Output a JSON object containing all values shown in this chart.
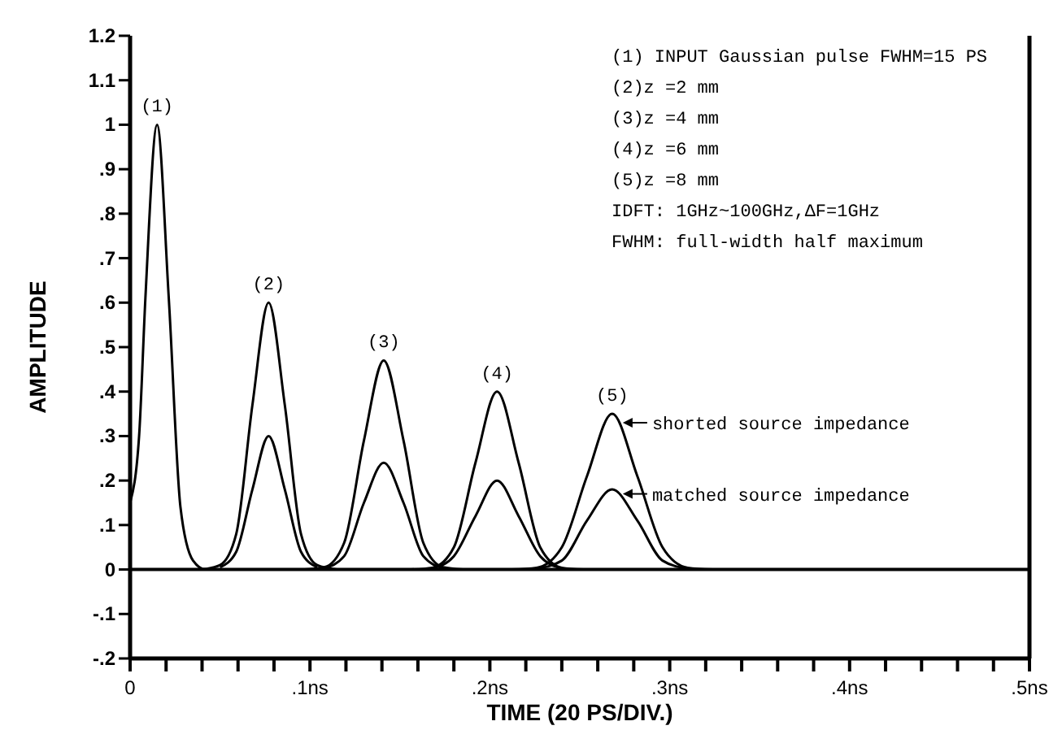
{
  "chart_data": {
    "type": "line",
    "xlabel": "TIME (20 PS/DIV.)",
    "ylabel": "AMPLITUDE",
    "xlim": [
      0,
      0.5
    ],
    "ylim": [
      -0.2,
      1.2
    ],
    "xticks": [
      0,
      {
        "value": 0.02,
        "label": null
      },
      {
        "value": 0.04,
        "label": null
      },
      {
        "value": 0.06,
        "label": null
      },
      {
        "value": 0.08,
        "label": null
      },
      {
        "value": 0.1,
        "label": ".1ns"
      },
      {
        "value": 0.12,
        "label": null
      },
      {
        "value": 0.14,
        "label": null
      },
      {
        "value": 0.16,
        "label": null
      },
      {
        "value": 0.18,
        "label": null
      },
      {
        "value": 0.2,
        "label": ".2ns"
      },
      {
        "value": 0.22,
        "label": null
      },
      {
        "value": 0.24,
        "label": null
      },
      {
        "value": 0.26,
        "label": null
      },
      {
        "value": 0.28,
        "label": null
      },
      {
        "value": 0.3,
        "label": ".3ns"
      },
      {
        "value": 0.32,
        "label": null
      },
      {
        "value": 0.34,
        "label": null
      },
      {
        "value": 0.36,
        "label": null
      },
      {
        "value": 0.38,
        "label": null
      },
      {
        "value": 0.4,
        "label": ".4ns"
      },
      {
        "value": 0.42,
        "label": null
      },
      {
        "value": 0.44,
        "label": null
      },
      {
        "value": 0.46,
        "label": null
      },
      {
        "value": 0.48,
        "label": null
      },
      {
        "value": 0.5,
        "label": ".5ns"
      }
    ],
    "yticks": [
      {
        "value": -0.2,
        "label": "-.2"
      },
      {
        "value": -0.1,
        "label": "-.1"
      },
      0,
      {
        "value": 0.1,
        "label": ".1"
      },
      {
        "value": 0.2,
        "label": ".2"
      },
      {
        "value": 0.3,
        "label": ".3"
      },
      {
        "value": 0.4,
        "label": ".4"
      },
      {
        "value": 0.5,
        "label": ".5"
      },
      {
        "value": 0.6,
        "label": ".6"
      },
      {
        "value": 0.7,
        "label": ".7"
      },
      {
        "value": 0.8,
        "label": ".8"
      },
      {
        "value": 0.9,
        "label": ".9"
      },
      1,
      {
        "value": 1.1,
        "label": "1.1"
      },
      {
        "value": 1.2,
        "label": "1.2"
      }
    ],
    "grid": false,
    "marker": "none",
    "line_style": "solid",
    "ref_lines": [
      {
        "axis": "y",
        "value": 0,
        "color": "#000000"
      }
    ],
    "series": [
      {
        "color": "#000000",
        "x": [
          0,
          0.005,
          0.0085,
          0.015,
          0.0215,
          0.028,
          0.035,
          0.042,
          0.05
        ],
        "values": [
          0.15,
          0.3,
          0.61,
          1,
          0.61,
          0.14,
          0.02,
          0,
          0
        ]
      },
      {
        "color": "#000000",
        "x": [
          0.04,
          0.05,
          0.059,
          0.068,
          0.077,
          0.086,
          0.095,
          0.104,
          0.115
        ],
        "values": [
          0,
          0.01,
          0.08,
          0.37,
          0.6,
          0.37,
          0.08,
          0.01,
          0
        ]
      },
      {
        "color": "#000000",
        "x": [
          0.05,
          0.059,
          0.068,
          0.077,
          0.086,
          0.095,
          0.104
        ],
        "values": [
          0.005,
          0.04,
          0.18,
          0.3,
          0.18,
          0.04,
          0.005
        ]
      },
      {
        "color": "#000000",
        "x": [
          0.097,
          0.108,
          0.119,
          0.13,
          0.141,
          0.152,
          0.163,
          0.174,
          0.185
        ],
        "values": [
          0,
          0.005,
          0.06,
          0.29,
          0.47,
          0.29,
          0.06,
          0.005,
          0
        ]
      },
      {
        "color": "#000000",
        "x": [
          0.108,
          0.119,
          0.13,
          0.141,
          0.152,
          0.163,
          0.174
        ],
        "values": [
          0.003,
          0.03,
          0.15,
          0.24,
          0.15,
          0.03,
          0.003
        ]
      },
      {
        "color": "#000000",
        "x": [
          0.156,
          0.168,
          0.18,
          0.192,
          0.204,
          0.216,
          0.228,
          0.24,
          0.252
        ],
        "values": [
          0,
          0.004,
          0.05,
          0.24,
          0.4,
          0.24,
          0.05,
          0.004,
          0
        ]
      },
      {
        "color": "#000000",
        "x": [
          0.168,
          0.18,
          0.192,
          0.204,
          0.216,
          0.228,
          0.24
        ],
        "values": [
          0.002,
          0.03,
          0.12,
          0.2,
          0.12,
          0.03,
          0.002
        ]
      },
      {
        "color": "#000000",
        "x": [
          0.212,
          0.226,
          0.24,
          0.254,
          0.268,
          0.282,
          0.296,
          0.31,
          0.324
        ],
        "values": [
          0,
          0.004,
          0.05,
          0.21,
          0.35,
          0.21,
          0.05,
          0.004,
          0
        ]
      },
      {
        "color": "#000000",
        "x": [
          0.226,
          0.24,
          0.254,
          0.268,
          0.282,
          0.296,
          0.31
        ],
        "values": [
          0.002,
          0.02,
          0.11,
          0.18,
          0.11,
          0.02,
          0.002
        ]
      }
    ],
    "annotations": [
      {
        "text": "(1)",
        "x": 0.015,
        "y": 1
      },
      {
        "text": "(2)",
        "x": 0.077,
        "y": 0.6
      },
      {
        "text": "(3)",
        "x": 0.141,
        "y": 0.47
      },
      {
        "text": "(4)",
        "x": 0.204,
        "y": 0.4
      },
      {
        "text": "(5)",
        "x": 0.268,
        "y": 0.35
      },
      {
        "text": "shorted source impedance",
        "x": 0.273,
        "y": 0.33
      },
      {
        "text": "matched source impedance",
        "x": 0.273,
        "y": 0.17
      },
      "(1) INPUT Gaussian pulse FWHM=15 PS",
      "(2)z =2 mm",
      "(3)z =4 mm",
      "(4)z =6 mm",
      "(5)z =8 mm",
      "IDFT: 1GHz~100GHz,ΔF=1GHz",
      "FWHM:  full-width half maximum"
    ]
  }
}
